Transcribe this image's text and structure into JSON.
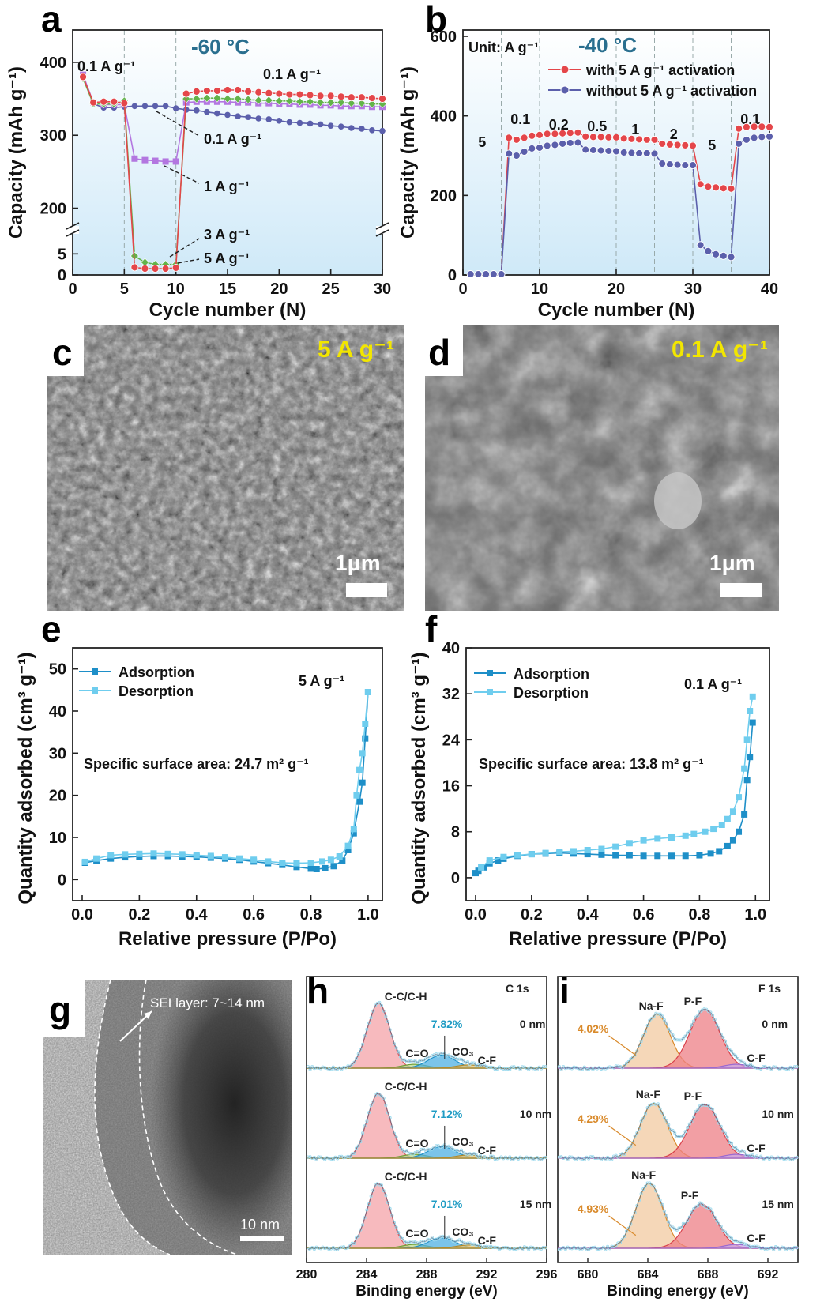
{
  "colors": {
    "red": "#e4464a",
    "green": "#62b34a",
    "purple": "#b377e0",
    "slate": "#5b5fab",
    "blue_dark": "#1e8fc8",
    "blue_light": "#6fcdee",
    "panel_a_bg": "#d8eefa",
    "sem_tag": "#f2e600",
    "label_blue": "#2a6f8f",
    "pct_blue": "#1f9cc4",
    "pct_orange": "#d98a2b"
  },
  "panels": {
    "a": {
      "letter": "a",
      "temperature": "-60 °C",
      "xlabel": "Cycle number (N)",
      "ylabel": "Capacity (mAh g⁻¹)",
      "xticks": [
        "0",
        "5",
        "10",
        "15",
        "20",
        "25",
        "30"
      ],
      "yticks_upper": [
        "200",
        "300",
        "400"
      ],
      "yticks_lower": [
        "0",
        "5"
      ],
      "annotations": {
        "start": "0.1 A g⁻¹",
        "recovery": "0.1 A g⁻¹",
        "series_01": "0.1 A g⁻¹",
        "series_1": "1 A g⁻¹",
        "series_3": "3 A g⁻¹",
        "series_5": "5 A g⁻¹"
      }
    },
    "b": {
      "letter": "b",
      "temperature": "-40 °C",
      "unit": "Unit: A g⁻¹",
      "xlabel": "Cycle number (N)",
      "ylabel": "Capacity (mAh g⁻¹)",
      "xticks": [
        "0",
        "10",
        "20",
        "30",
        "40"
      ],
      "yticks": [
        "0",
        "200",
        "400",
        "600"
      ],
      "rate_labels": [
        "5",
        "0.1",
        "0.2",
        "0.5",
        "1",
        "2",
        "5",
        "0.1"
      ],
      "legend": [
        "with 5 A g⁻¹ activation",
        "without 5 A g⁻¹ activation"
      ]
    },
    "c": {
      "letter": "c",
      "tag": "5 A g⁻¹",
      "scale": "1μm"
    },
    "d": {
      "letter": "d",
      "tag": "0.1 A g⁻¹",
      "scale": "1μm"
    },
    "e": {
      "letter": "e",
      "xlabel": "Relative pressure (P/Po)",
      "ylabel": "Quantity adsorbed (cm³ g⁻¹)",
      "xticks": [
        "0.0",
        "0.2",
        "0.4",
        "0.6",
        "0.8",
        "1.0"
      ],
      "yticks": [
        "0",
        "10",
        "20",
        "30",
        "40",
        "50"
      ],
      "legend": [
        "Adsorption",
        "Desorption"
      ],
      "tag": "5 A g⁻¹",
      "note": "Specific surface area: 24.7 m² g⁻¹"
    },
    "f": {
      "letter": "f",
      "xlabel": "Relative pressure (P/Po)",
      "ylabel": "Quantity adsorbed (cm³ g⁻¹)",
      "xticks": [
        "0.0",
        "0.2",
        "0.4",
        "0.6",
        "0.8",
        "1.0"
      ],
      "yticks": [
        "0",
        "8",
        "16",
        "24",
        "32",
        "40"
      ],
      "legend": [
        "Adsorption",
        "Desorption"
      ],
      "tag": "0.1 A g⁻¹",
      "note": "Specific surface area: 13.8 m² g⁻¹"
    },
    "g": {
      "letter": "g",
      "sei": "SEI layer: 7~14 nm",
      "scale": "10 nm"
    },
    "h": {
      "letter": "h",
      "title": "C 1s",
      "xlabel": "Binding energy (eV)",
      "xticks": [
        "280",
        "284",
        "288",
        "292",
        "296"
      ],
      "peaks": [
        "C-C/C-H",
        "C=O",
        "CO₃",
        "C-F"
      ],
      "depths": [
        "0 nm",
        "10 nm",
        "15 nm"
      ],
      "pcts": [
        "7.82%",
        "7.12%",
        "7.01%"
      ]
    },
    "i": {
      "letter": "i",
      "title": "F 1s",
      "xlabel": "Binding energy (eV)",
      "xticks": [
        "680",
        "684",
        "688",
        "692"
      ],
      "peaks": [
        "Na-F",
        "P-F",
        "C-F"
      ],
      "depths": [
        "0 nm",
        "10 nm",
        "15 nm"
      ],
      "pcts": [
        "4.02%",
        "4.29%",
        "4.93%"
      ]
    }
  },
  "chart_data": [
    {
      "panel": "a",
      "type": "line",
      "x_range": [
        0,
        30
      ],
      "y_break": {
        "lower": [
          0,
          9
        ],
        "upper": [
          180,
          440
        ]
      },
      "x": [
        1,
        2,
        3,
        4,
        5,
        6,
        7,
        8,
        9,
        10,
        11,
        12,
        13,
        14,
        15,
        16,
        17,
        18,
        19,
        20,
        21,
        22,
        23,
        24,
        25,
        26,
        27,
        28,
        29,
        30
      ],
      "series": [
        {
          "name": "0.1 A g⁻¹",
          "color": "#5b5fab",
          "values": [
            382,
            343,
            338,
            338,
            339,
            340,
            340,
            340,
            340,
            337,
            335,
            334,
            332,
            330,
            328,
            326,
            325,
            323,
            322,
            320,
            318,
            317,
            316,
            315,
            313,
            312,
            310,
            309,
            307,
            306
          ]
        },
        {
          "name": "1 A g⁻¹",
          "color": "#b377e0",
          "values": [
            383,
            345,
            342,
            342,
            342,
            268,
            266,
            265,
            264,
            264,
            345,
            346,
            346,
            346,
            346,
            345,
            345,
            344,
            344,
            343,
            343,
            342,
            342,
            341,
            341,
            340,
            340,
            340,
            339,
            339
          ]
        },
        {
          "name": "3 A g⁻¹",
          "color": "#62b34a",
          "values": [
            378,
            343,
            343,
            343,
            347,
            4.5,
            3,
            2.5,
            2.5,
            2.5,
            350,
            350,
            351,
            351,
            350,
            350,
            349,
            348,
            348,
            347,
            347,
            346,
            346,
            345,
            345,
            345,
            344,
            344,
            343,
            343
          ]
        },
        {
          "name": "5 A g⁻¹",
          "color": "#e4464a",
          "values": [
            380,
            345,
            346,
            346,
            344,
            1.8,
            1.5,
            1.5,
            1.5,
            1.7,
            357,
            360,
            361,
            361,
            362,
            362,
            360,
            359,
            358,
            357,
            356,
            356,
            355,
            354,
            354,
            353,
            352,
            352,
            351,
            350
          ]
        }
      ]
    },
    {
      "panel": "b",
      "type": "line",
      "x_range": [
        0,
        40
      ],
      "y_range": [
        0,
        600
      ],
      "x": [
        1,
        2,
        3,
        4,
        5,
        6,
        7,
        8,
        9,
        10,
        11,
        12,
        13,
        14,
        15,
        16,
        17,
        18,
        19,
        20,
        21,
        22,
        23,
        24,
        25,
        26,
        27,
        28,
        29,
        30,
        31,
        32,
        33,
        34,
        35,
        36,
        37,
        38,
        39,
        40
      ],
      "series": [
        {
          "name": "with 5 A g⁻¹ activation",
          "color": "#e4464a",
          "values": [
            2,
            2,
            2,
            2,
            2,
            345,
            340,
            345,
            350,
            352,
            355,
            355,
            356,
            357,
            358,
            348,
            347,
            347,
            346,
            346,
            343,
            342,
            341,
            340,
            340,
            330,
            328,
            327,
            326,
            325,
            228,
            222,
            220,
            218,
            217,
            368,
            372,
            373,
            373,
            372
          ]
        },
        {
          "name": "without 5 A g⁻¹ activation",
          "color": "#5b5fab",
          "values": [
            2,
            2,
            2,
            2,
            2,
            305,
            300,
            310,
            318,
            320,
            325,
            327,
            330,
            332,
            333,
            315,
            314,
            313,
            312,
            311,
            308,
            307,
            306,
            306,
            305,
            280,
            278,
            277,
            276,
            276,
            75,
            60,
            52,
            48,
            45,
            330,
            340,
            345,
            347,
            348
          ]
        }
      ]
    },
    {
      "panel": "e",
      "type": "line",
      "x_range": [
        0,
        1.05
      ],
      "y_range": [
        -5,
        55
      ],
      "series": [
        {
          "name": "Adsorption",
          "color": "#1e8fc8",
          "x": [
            0.01,
            0.05,
            0.1,
            0.15,
            0.2,
            0.25,
            0.3,
            0.35,
            0.4,
            0.45,
            0.5,
            0.55,
            0.6,
            0.65,
            0.7,
            0.75,
            0.8,
            0.82,
            0.85,
            0.88,
            0.91,
            0.93,
            0.95,
            0.97,
            0.98,
            0.99,
            1.0
          ],
          "y": [
            4,
            4.5,
            5,
            5.3,
            5.5,
            5.6,
            5.6,
            5.5,
            5.4,
            5.2,
            5.0,
            4.7,
            4.3,
            3.9,
            3.5,
            3.0,
            2.6,
            2.5,
            2.7,
            3.2,
            4.5,
            7,
            11,
            18.5,
            23,
            33.5,
            44.5
          ]
        },
        {
          "name": "Desorption",
          "color": "#6fcdee",
          "x": [
            1.0,
            0.99,
            0.98,
            0.97,
            0.96,
            0.95,
            0.93,
            0.9,
            0.87,
            0.84,
            0.8,
            0.75,
            0.7,
            0.65,
            0.6,
            0.55,
            0.5,
            0.45,
            0.4,
            0.35,
            0.3,
            0.25,
            0.2,
            0.15,
            0.1,
            0.05,
            0.01
          ],
          "y": [
            44.5,
            37,
            30,
            26,
            20,
            12,
            8,
            5.5,
            4.7,
            4.3,
            4.0,
            3.9,
            4.0,
            4.3,
            4.7,
            5.0,
            5.3,
            5.6,
            5.8,
            6.0,
            6.1,
            6.2,
            6.1,
            6.0,
            5.8,
            5.0,
            4.2
          ]
        }
      ]
    },
    {
      "panel": "f",
      "type": "line",
      "x_range": [
        0,
        1.05
      ],
      "y_range": [
        -4,
        40
      ],
      "series": [
        {
          "name": "Adsorption",
          "color": "#1e8fc8",
          "x": [
            0.0,
            0.01,
            0.03,
            0.05,
            0.08,
            0.1,
            0.15,
            0.2,
            0.25,
            0.3,
            0.35,
            0.4,
            0.45,
            0.5,
            0.55,
            0.6,
            0.65,
            0.7,
            0.75,
            0.8,
            0.84,
            0.87,
            0.9,
            0.92,
            0.94,
            0.96,
            0.97,
            0.98,
            0.99
          ],
          "y": [
            0.8,
            1.2,
            1.8,
            2.5,
            3.0,
            3.3,
            3.8,
            4.1,
            4.2,
            4.3,
            4.2,
            4.1,
            4.0,
            3.9,
            3.9,
            3.8,
            3.8,
            3.8,
            3.8,
            3.9,
            4.2,
            4.6,
            5.5,
            6.5,
            8,
            11,
            17,
            21,
            27
          ]
        },
        {
          "name": "Desorption",
          "color": "#6fcdee",
          "x": [
            0.99,
            0.98,
            0.97,
            0.96,
            0.94,
            0.92,
            0.9,
            0.88,
            0.85,
            0.82,
            0.78,
            0.75,
            0.7,
            0.65,
            0.6,
            0.55,
            0.5,
            0.45,
            0.4,
            0.35,
            0.3,
            0.25,
            0.2,
            0.15,
            0.1,
            0.05,
            0.02
          ],
          "y": [
            31.5,
            29,
            24,
            19,
            14,
            11.5,
            10.2,
            9.2,
            8.5,
            8.0,
            7.6,
            7.3,
            7.0,
            6.8,
            6.5,
            6.0,
            5.4,
            5.0,
            4.8,
            4.6,
            4.5,
            4.3,
            4.1,
            3.9,
            3.6,
            3.0,
            1.8
          ]
        }
      ]
    },
    {
      "panel": "h",
      "type": "area",
      "x_range": [
        280,
        296
      ],
      "title": "C 1s",
      "profiles": [
        {
          "depth": "0 nm",
          "ccch": {
            "center": 284.8,
            "height": 1.0
          },
          "co": {
            "center": 287.2,
            "height": 0.06
          },
          "co3": {
            "center": 289.0,
            "height": 0.2
          },
          "cf": {
            "center": 290.8,
            "height": 0.05
          }
        },
        {
          "depth": "10 nm",
          "ccch": {
            "center": 284.8,
            "height": 1.0
          },
          "co": {
            "center": 287.2,
            "height": 0.06
          },
          "co3": {
            "center": 289.0,
            "height": 0.18
          },
          "cf": {
            "center": 290.8,
            "height": 0.05
          }
        },
        {
          "depth": "15 nm",
          "ccch": {
            "center": 284.8,
            "height": 1.0
          },
          "co": {
            "center": 287.2,
            "height": 0.06
          },
          "co3": {
            "center": 289.0,
            "height": 0.16
          },
          "cf": {
            "center": 290.8,
            "height": 0.05
          }
        }
      ]
    },
    {
      "panel": "i",
      "type": "area",
      "x_range": [
        678,
        694
      ],
      "title": "F 1s",
      "profiles": [
        {
          "depth": "0 nm",
          "naf": {
            "center": 684.6,
            "height": 0.83
          },
          "pf": {
            "center": 687.8,
            "height": 0.9
          },
          "cf": {
            "center": 689.9,
            "height": 0.06
          }
        },
        {
          "depth": "10 nm",
          "naf": {
            "center": 684.4,
            "height": 0.85
          },
          "pf": {
            "center": 687.8,
            "height": 0.83
          },
          "cf": {
            "center": 689.9,
            "height": 0.06
          }
        },
        {
          "depth": "15 nm",
          "naf": {
            "center": 684.1,
            "height": 1.0
          },
          "pf": {
            "center": 687.6,
            "height": 0.68
          },
          "cf": {
            "center": 689.9,
            "height": 0.06
          }
        }
      ]
    }
  ]
}
